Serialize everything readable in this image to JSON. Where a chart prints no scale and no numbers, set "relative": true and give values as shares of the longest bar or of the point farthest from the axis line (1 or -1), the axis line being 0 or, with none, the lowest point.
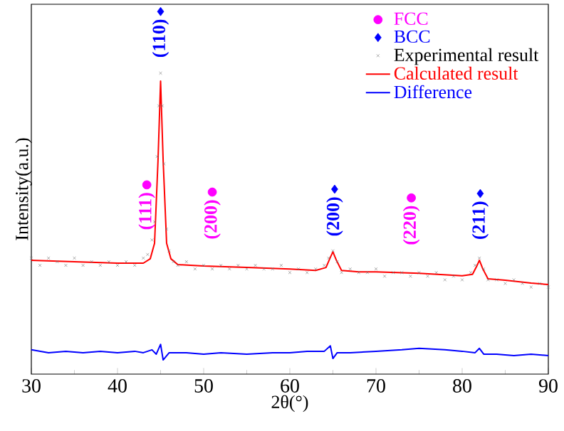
{
  "chart_data": {
    "type": "line",
    "relative": true,
    "xlabel": "2θ(°)",
    "ylabel": "Intensity(a.u.)",
    "xlim": [
      30,
      90
    ],
    "xticks": [
      30,
      40,
      50,
      60,
      70,
      80,
      90
    ],
    "legend": "top right",
    "grid": false,
    "annotations": [
      {
        "text": "(111)",
        "x": 43.4,
        "y": 0.522
      },
      {
        "text": "(200)",
        "x": 51.0,
        "y": 0.502
      },
      {
        "text": "(220)",
        "x": 74.1,
        "y": 0.486
      },
      {
        "text": "(110)",
        "x": 45.0,
        "y": 1.0
      },
      {
        "text": "(200)",
        "x": 65.2,
        "y": 0.51
      },
      {
        "text": "(211)",
        "x": 82.1,
        "y": 0.498
      }
    ],
    "series": [
      {
        "name": "FCC",
        "type": "scatter",
        "marker": "circle",
        "color": "#ff00ff",
        "x": [
          43.4,
          51.0,
          74.1
        ],
        "values": [
          0.522,
          0.502,
          0.486
        ]
      },
      {
        "name": "BCC",
        "type": "scatter",
        "marker": "diamond",
        "color": "#0000ff",
        "x": [
          45.0,
          65.2,
          82.1
        ],
        "values": [
          1.0,
          0.51,
          0.498
        ]
      },
      {
        "name": "Experimental result",
        "type": "scatter",
        "marker": "cross",
        "color": "#737373",
        "x": [
          30,
          31,
          32,
          33,
          34,
          35,
          36,
          37,
          38,
          39,
          40,
          41,
          42,
          43,
          43.5,
          44,
          44.3,
          44.6,
          44.8,
          45,
          45.2,
          45.4,
          45.7,
          46,
          46.5,
          47,
          48,
          49,
          50,
          51,
          52,
          53,
          54,
          55,
          56,
          57,
          58,
          59,
          60,
          61,
          62,
          63,
          64,
          64.5,
          65,
          65.5,
          66,
          67,
          68,
          69,
          70,
          71,
          72,
          73,
          74,
          75,
          76,
          77,
          78,
          79,
          80,
          81,
          81.5,
          82,
          82.5,
          83,
          84,
          85,
          86,
          87,
          88,
          89,
          90
        ],
        "values": [
          0.32,
          0.3,
          0.32,
          0.31,
          0.3,
          0.32,
          0.3,
          0.31,
          0.3,
          0.31,
          0.3,
          0.31,
          0.3,
          0.32,
          0.33,
          0.37,
          0.42,
          0.6,
          0.74,
          0.83,
          0.74,
          0.58,
          0.4,
          0.34,
          0.31,
          0.3,
          0.31,
          0.29,
          0.3,
          0.29,
          0.3,
          0.29,
          0.3,
          0.29,
          0.3,
          0.29,
          0.29,
          0.3,
          0.28,
          0.29,
          0.28,
          0.29,
          0.3,
          0.32,
          0.34,
          0.31,
          0.28,
          0.29,
          0.28,
          0.28,
          0.29,
          0.27,
          0.28,
          0.28,
          0.27,
          0.28,
          0.27,
          0.28,
          0.26,
          0.27,
          0.26,
          0.28,
          0.3,
          0.32,
          0.29,
          0.26,
          0.26,
          0.25,
          0.26,
          0.25,
          0.24,
          0.25,
          0.24
        ]
      },
      {
        "name": "Calculated result",
        "marker": "none",
        "line_style": "solid",
        "color": "#ff0000",
        "x": [
          30,
          35,
          40,
          43,
          43.8,
          44.3,
          44.7,
          45,
          45.3,
          45.7,
          46.2,
          47,
          50,
          55,
          60,
          63,
          64.2,
          64.7,
          65,
          65.4,
          66,
          68,
          70,
          75,
          80,
          81.2,
          81.7,
          82,
          82.4,
          83,
          85,
          88,
          90
        ],
        "values": [
          0.314,
          0.31,
          0.306,
          0.306,
          0.318,
          0.361,
          0.588,
          0.808,
          0.588,
          0.361,
          0.318,
          0.302,
          0.298,
          0.294,
          0.29,
          0.286,
          0.294,
          0.322,
          0.337,
          0.314,
          0.286,
          0.282,
          0.282,
          0.278,
          0.271,
          0.275,
          0.298,
          0.314,
          0.29,
          0.263,
          0.259,
          0.251,
          0.247
        ]
      },
      {
        "name": "Difference",
        "marker": "none",
        "line_style": "solid",
        "color": "#0000ff",
        "x": [
          30,
          32,
          34,
          36,
          38,
          40,
          42,
          43,
          44,
          44.5,
          45,
          45.3,
          46,
          48,
          50,
          52,
          55,
          58,
          60,
          62,
          64,
          64.7,
          65,
          65.5,
          67,
          70,
          73,
          75,
          78,
          80,
          81.5,
          82,
          82.5,
          84,
          86,
          88,
          90
        ],
        "values": [
          0.067,
          0.059,
          0.063,
          0.059,
          0.063,
          0.059,
          0.063,
          0.059,
          0.067,
          0.055,
          0.082,
          0.039,
          0.059,
          0.059,
          0.055,
          0.059,
          0.055,
          0.059,
          0.059,
          0.063,
          0.063,
          0.078,
          0.043,
          0.059,
          0.059,
          0.063,
          0.067,
          0.071,
          0.067,
          0.063,
          0.059,
          0.071,
          0.055,
          0.055,
          0.051,
          0.055,
          0.051
        ]
      }
    ]
  }
}
